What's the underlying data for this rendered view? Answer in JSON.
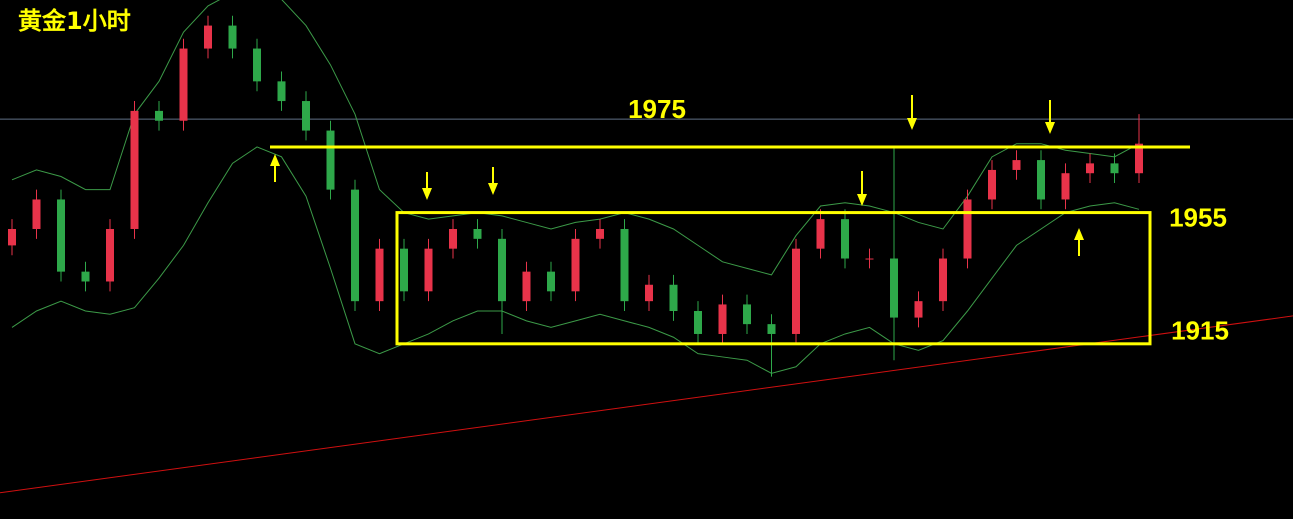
{
  "chart_data": {
    "type": "candlestick",
    "title": "黄金1小时",
    "open": [
      1945,
      1950,
      1959,
      1937,
      1934,
      1950,
      1986,
      1983,
      2005,
      2012,
      2005,
      1995,
      1989,
      1980,
      1962,
      1928,
      1944,
      1931,
      1944,
      1950,
      1947,
      1928,
      1937,
      1931,
      1947,
      1950,
      1928,
      1933,
      1925,
      1918,
      1927,
      1921,
      1918,
      1944,
      1953,
      1941,
      1941,
      1923,
      1928,
      1941,
      1959,
      1968,
      1971,
      1959,
      1967,
      1970,
      1967
    ],
    "high": [
      1953,
      1962,
      1962,
      1940,
      1953,
      1989,
      1989,
      2008,
      2015,
      2015,
      2008,
      1998,
      1992,
      1983,
      1965,
      1947,
      1947,
      1947,
      1953,
      1953,
      1950,
      1940,
      1940,
      1950,
      1953,
      1953,
      1936,
      1936,
      1928,
      1930,
      1930,
      1924,
      1947,
      1956,
      1956,
      1944,
      1975,
      1931,
      1944,
      1962,
      1971,
      1974,
      1974,
      1970,
      1973,
      1973,
      1985
    ],
    "low": [
      1942,
      1947,
      1934,
      1931,
      1931,
      1947,
      1980,
      1980,
      2002,
      2002,
      1992,
      1986,
      1977,
      1959,
      1925,
      1925,
      1928,
      1928,
      1941,
      1944,
      1918,
      1925,
      1928,
      1928,
      1944,
      1925,
      1925,
      1922,
      1915,
      1915,
      1918,
      1905,
      1915,
      1941,
      1938,
      1938,
      1910,
      1920,
      1925,
      1938,
      1956,
      1965,
      1956,
      1956,
      1964,
      1964,
      1964
    ],
    "close": [
      1950,
      1959,
      1937,
      1934,
      1950,
      1986,
      1983,
      2005,
      2012,
      2005,
      1995,
      1989,
      1980,
      1962,
      1928,
      1944,
      1931,
      1944,
      1950,
      1947,
      1928,
      1937,
      1931,
      1947,
      1950,
      1928,
      1933,
      1925,
      1918,
      1927,
      1921,
      1918,
      1944,
      1953,
      1941,
      1941,
      1923,
      1928,
      1941,
      1959,
      1968,
      1971,
      1959,
      1967,
      1970,
      1967,
      1976
    ],
    "upper_band": [
      1965,
      1968,
      1966,
      1962,
      1962,
      1985,
      1995,
      2010,
      2018,
      2022,
      2023,
      2020,
      2012,
      2000,
      1985,
      1962,
      1955,
      1953,
      1954,
      1955,
      1954,
      1952,
      1950,
      1952,
      1953,
      1955,
      1953,
      1950,
      1945,
      1940,
      1938,
      1936,
      1948,
      1957,
      1958,
      1957,
      1955,
      1952,
      1950,
      1960,
      1972,
      1976,
      1976,
      1974,
      1973,
      1972,
      1976
    ],
    "lower_band": [
      1920,
      1925,
      1928,
      1925,
      1924,
      1926,
      1935,
      1945,
      1958,
      1970,
      1975,
      1972,
      1960,
      1938,
      1915,
      1912,
      1915,
      1918,
      1922,
      1925,
      1925,
      1922,
      1920,
      1922,
      1924,
      1922,
      1920,
      1917,
      1912,
      1911,
      1910,
      1906,
      1908,
      1915,
      1918,
      1920,
      1915,
      1913,
      1916,
      1925,
      1935,
      1945,
      1950,
      1955,
      1957,
      1958,
      1956
    ],
    "up_color": "#e8334a",
    "down_color": "#2ea84a",
    "band_color": "#3c9a48",
    "levels": [
      1975,
      1955,
      1915
    ],
    "level_color": "#ffff00",
    "reference_line": 1983.5,
    "trend_line": [
      1869.6,
      1923.5
    ],
    "ylim": [
      1861.6,
      2019.8
    ]
  }
}
